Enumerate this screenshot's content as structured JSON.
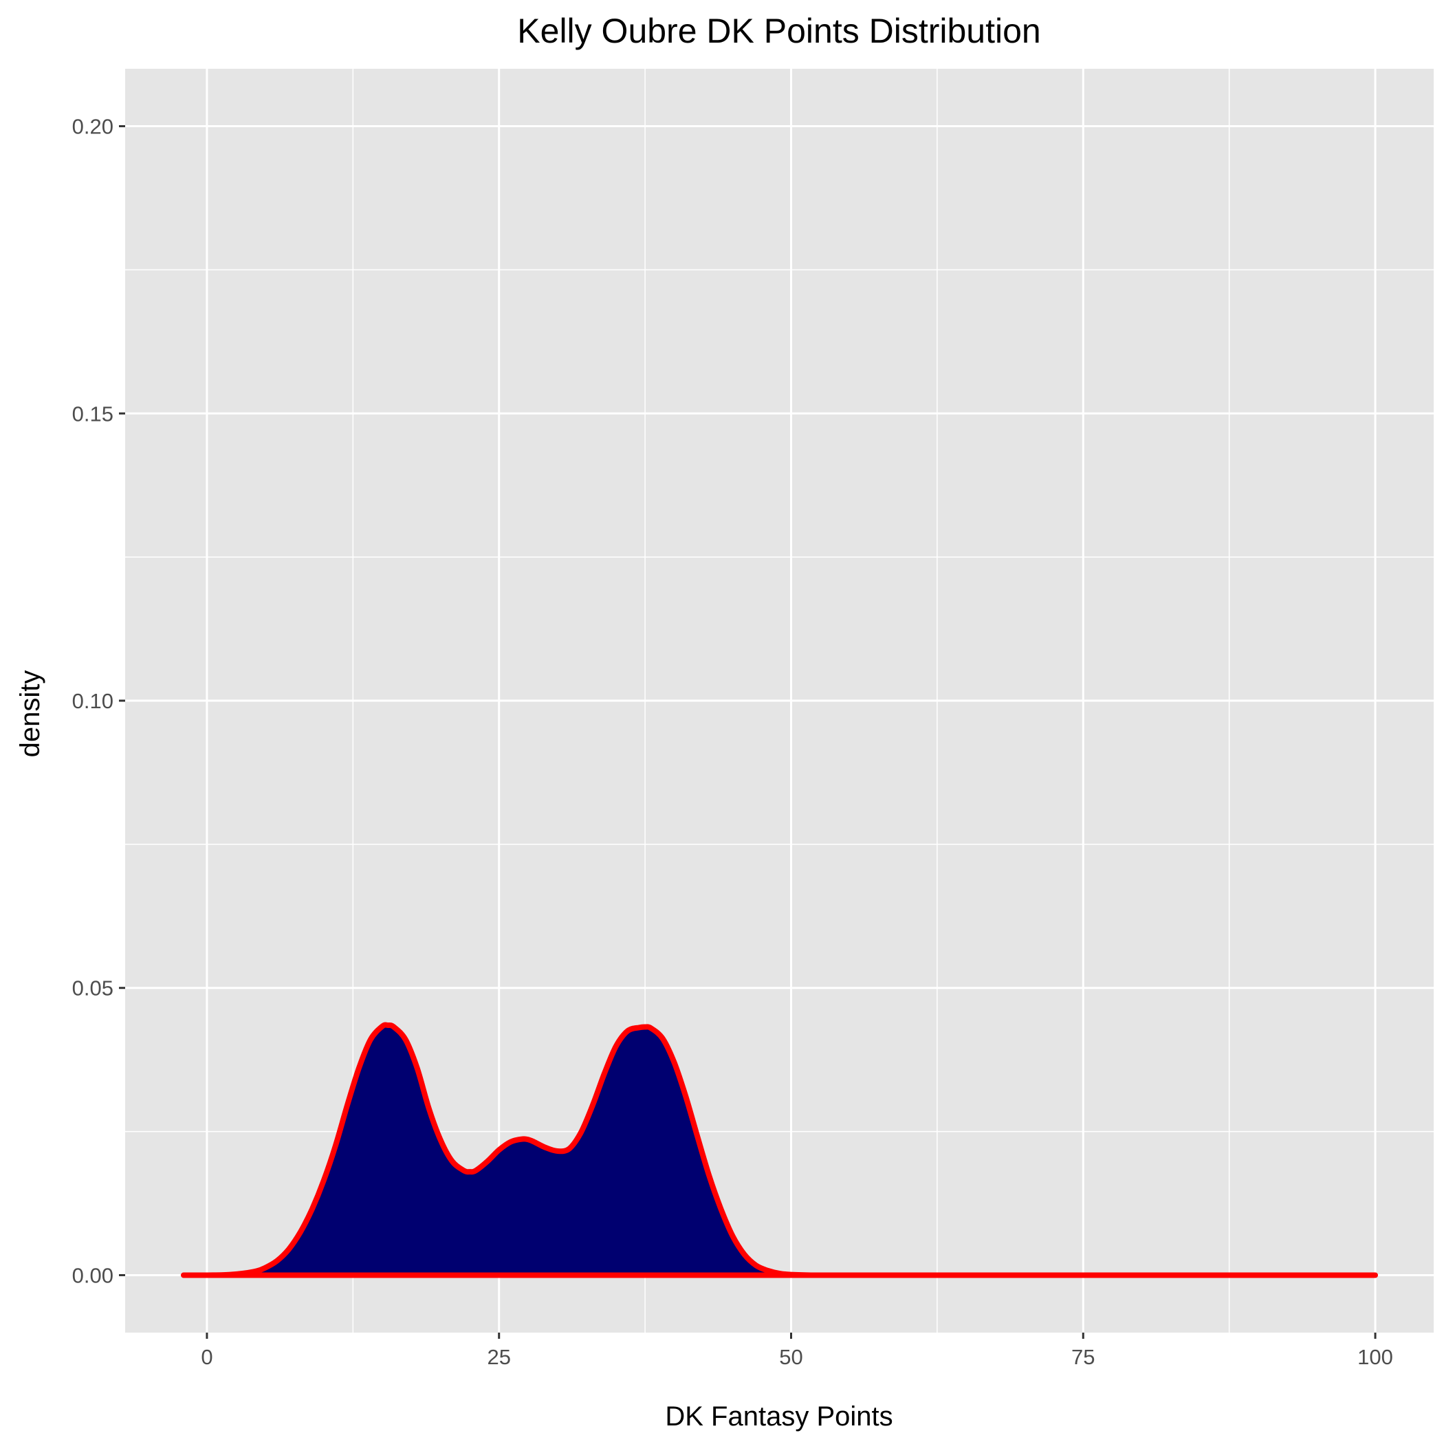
{
  "chart_data": {
    "type": "area",
    "title": "Kelly Oubre DK Points Distribution",
    "xlabel": "DK Fantasy Points",
    "ylabel": "density",
    "xlim": [
      -7,
      105
    ],
    "ylim": [
      -0.01,
      0.21
    ],
    "x_ticks": [
      0,
      25,
      50,
      75,
      100
    ],
    "x_tick_labels": [
      "0",
      "25",
      "50",
      "75",
      "100"
    ],
    "y_ticks": [
      0,
      0.05,
      0.1,
      0.15,
      0.2
    ],
    "y_tick_labels": [
      "0.00",
      "0.05",
      "0.10",
      "0.15",
      "0.20"
    ],
    "grid": true,
    "legend": "none",
    "colors": {
      "panel_background": "#e5e5e5",
      "grid": "#ffffff",
      "fill": "#000070",
      "line": "#ff0000"
    },
    "series": [
      {
        "x": [
          -2,
          0,
          2,
          4,
          5,
          6,
          7,
          8,
          9,
          10,
          11,
          12,
          13,
          14,
          15,
          15.5,
          16,
          17,
          18,
          19,
          20,
          21,
          22,
          22.5,
          23,
          24,
          25,
          26,
          27,
          27.5,
          28,
          29,
          30,
          31,
          32,
          33,
          34,
          35,
          36,
          37,
          37.5,
          38,
          39,
          40,
          41,
          42,
          43,
          44,
          45,
          46,
          47,
          48,
          49,
          50,
          52,
          55,
          60,
          70,
          80,
          90,
          100
        ],
        "y": [
          0,
          0,
          0.0001,
          0.0006,
          0.0013,
          0.0025,
          0.0045,
          0.0075,
          0.0115,
          0.0165,
          0.0225,
          0.0295,
          0.036,
          0.041,
          0.0433,
          0.0435,
          0.0432,
          0.041,
          0.036,
          0.029,
          0.0235,
          0.0198,
          0.0182,
          0.018,
          0.0182,
          0.0198,
          0.0218,
          0.0232,
          0.0237,
          0.0236,
          0.0232,
          0.0222,
          0.0216,
          0.022,
          0.0248,
          0.0295,
          0.035,
          0.0398,
          0.0425,
          0.0431,
          0.0432,
          0.043,
          0.0412,
          0.037,
          0.031,
          0.024,
          0.0172,
          0.0115,
          0.0068,
          0.0036,
          0.0017,
          0.0008,
          0.0003,
          0.0001,
          0,
          0,
          0,
          0,
          0,
          0,
          0
        ]
      }
    ]
  }
}
